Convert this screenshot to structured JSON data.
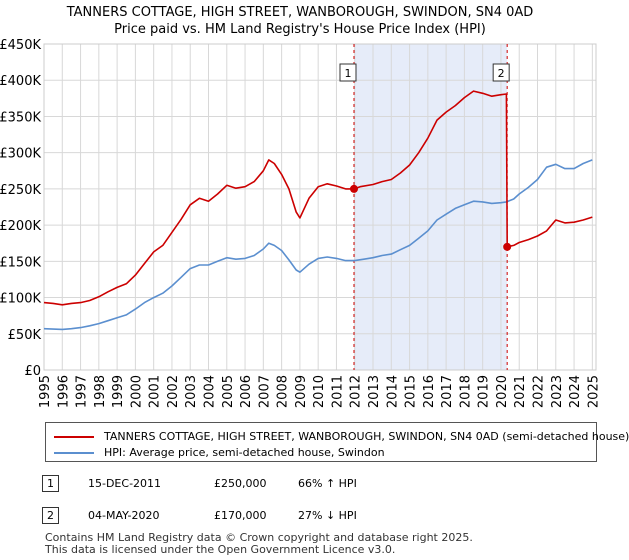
{
  "chart_data": {
    "type": "line",
    "title": "TANNERS COTTAGE, HIGH STREET, WANBOROUGH, SWINDON, SN4 0AD",
    "subtitle": "Price paid vs. HM Land Registry's House Price Index (HPI)",
    "xlim": [
      1995,
      2025.2
    ],
    "ylim": [
      0,
      450000
    ],
    "x_ticks": [
      1995,
      1996,
      1997,
      1998,
      1999,
      2000,
      2001,
      2002,
      2003,
      2004,
      2005,
      2006,
      2007,
      2008,
      2009,
      2010,
      2011,
      2012,
      2013,
      2014,
      2015,
      2016,
      2017,
      2018,
      2019,
      2020,
      2021,
      2022,
      2023,
      2024,
      2025
    ],
    "y_ticks": [
      0,
      50000,
      100000,
      150000,
      200000,
      250000,
      300000,
      350000,
      400000,
      450000
    ],
    "y_tick_labels": [
      "£0",
      "£50K",
      "£100K",
      "£150K",
      "£200K",
      "£250K",
      "£300K",
      "£350K",
      "£400K",
      "£450K"
    ],
    "grid": true,
    "shaded_period": [
      2011.96,
      2020.34
    ],
    "series": [
      {
        "name": "TANNERS COTTAGE, HIGH STREET, WANBOROUGH, SWINDON, SN4 0AD (semi-detached house)",
        "color": "#cc0000",
        "points": [
          [
            1995,
            93000
          ],
          [
            1995.5,
            92000
          ],
          [
            1996,
            90000
          ],
          [
            1996.5,
            92000
          ],
          [
            1997,
            93000
          ],
          [
            1997.5,
            96000
          ],
          [
            1998,
            101000
          ],
          [
            1998.5,
            108000
          ],
          [
            1999,
            114000
          ],
          [
            1999.5,
            119000
          ],
          [
            2000,
            131000
          ],
          [
            2000.5,
            147000
          ],
          [
            2001,
            163000
          ],
          [
            2001.5,
            172000
          ],
          [
            2002,
            190000
          ],
          [
            2002.5,
            208000
          ],
          [
            2003,
            228000
          ],
          [
            2003.5,
            237000
          ],
          [
            2004,
            233000
          ],
          [
            2004.5,
            243000
          ],
          [
            2005,
            255000
          ],
          [
            2005.5,
            251000
          ],
          [
            2006,
            253000
          ],
          [
            2006.5,
            260000
          ],
          [
            2007,
            275000
          ],
          [
            2007.3,
            290000
          ],
          [
            2007.6,
            285000
          ],
          [
            2008,
            270000
          ],
          [
            2008.4,
            250000
          ],
          [
            2008.8,
            218000
          ],
          [
            2009,
            210000
          ],
          [
            2009.5,
            237000
          ],
          [
            2010,
            253000
          ],
          [
            2010.5,
            257000
          ],
          [
            2011,
            254000
          ],
          [
            2011.5,
            250000
          ],
          [
            2011.96,
            250000
          ],
          [
            2012.3,
            253000
          ],
          [
            2013,
            256000
          ],
          [
            2013.5,
            260000
          ],
          [
            2014,
            263000
          ],
          [
            2014.5,
            272000
          ],
          [
            2015,
            283000
          ],
          [
            2015.5,
            300000
          ],
          [
            2016,
            320000
          ],
          [
            2016.5,
            345000
          ],
          [
            2017,
            356000
          ],
          [
            2017.5,
            365000
          ],
          [
            2018,
            376000
          ],
          [
            2018.5,
            385000
          ],
          [
            2019,
            382000
          ],
          [
            2019.5,
            378000
          ],
          [
            2020,
            380000
          ],
          [
            2020.3,
            381000
          ],
          [
            2020.34,
            170000
          ],
          [
            2020.7,
            172000
          ],
          [
            2021,
            176000
          ],
          [
            2021.5,
            180000
          ],
          [
            2022,
            185000
          ],
          [
            2022.5,
            192000
          ],
          [
            2023,
            207000
          ],
          [
            2023.5,
            203000
          ],
          [
            2024,
            204000
          ],
          [
            2024.5,
            207000
          ],
          [
            2025,
            211000
          ]
        ]
      },
      {
        "name": "HPI: Average price, semi-detached house, Swindon",
        "color": "#5b8fcf",
        "points": [
          [
            1995,
            57000
          ],
          [
            1995.5,
            56500
          ],
          [
            1996,
            56000
          ],
          [
            1996.5,
            57000
          ],
          [
            1997,
            58500
          ],
          [
            1997.5,
            61000
          ],
          [
            1998,
            64000
          ],
          [
            1998.5,
            68000
          ],
          [
            1999,
            72000
          ],
          [
            1999.5,
            76000
          ],
          [
            2000,
            84000
          ],
          [
            2000.5,
            93000
          ],
          [
            2001,
            100000
          ],
          [
            2001.5,
            106000
          ],
          [
            2002,
            116000
          ],
          [
            2002.5,
            128000
          ],
          [
            2003,
            140000
          ],
          [
            2003.5,
            145000
          ],
          [
            2004,
            145000
          ],
          [
            2004.5,
            150000
          ],
          [
            2005,
            155000
          ],
          [
            2005.5,
            153000
          ],
          [
            2006,
            154000
          ],
          [
            2006.5,
            158000
          ],
          [
            2007,
            167000
          ],
          [
            2007.3,
            175000
          ],
          [
            2007.6,
            172000
          ],
          [
            2008,
            165000
          ],
          [
            2008.4,
            152000
          ],
          [
            2008.8,
            138000
          ],
          [
            2009,
            135000
          ],
          [
            2009.5,
            146000
          ],
          [
            2010,
            154000
          ],
          [
            2010.5,
            156000
          ],
          [
            2011,
            154000
          ],
          [
            2011.5,
            151000
          ],
          [
            2012,
            151000
          ],
          [
            2012.5,
            153000
          ],
          [
            2013,
            155000
          ],
          [
            2013.5,
            158000
          ],
          [
            2014,
            160000
          ],
          [
            2014.5,
            166000
          ],
          [
            2015,
            172000
          ],
          [
            2015.5,
            182000
          ],
          [
            2016,
            192000
          ],
          [
            2016.5,
            207000
          ],
          [
            2017,
            215000
          ],
          [
            2017.5,
            223000
          ],
          [
            2018,
            228000
          ],
          [
            2018.5,
            233000
          ],
          [
            2019,
            232000
          ],
          [
            2019.5,
            230000
          ],
          [
            2020,
            231000
          ],
          [
            2020.3,
            232000
          ],
          [
            2020.7,
            236000
          ],
          [
            2021,
            243000
          ],
          [
            2021.5,
            252000
          ],
          [
            2022,
            263000
          ],
          [
            2022.5,
            280000
          ],
          [
            2023,
            284000
          ],
          [
            2023.5,
            278000
          ],
          [
            2024,
            278000
          ],
          [
            2024.5,
            285000
          ],
          [
            2025,
            290000
          ]
        ]
      }
    ],
    "markers": [
      {
        "label": "1",
        "x": 2011.96,
        "y": 250000
      },
      {
        "label": "2",
        "x": 2020.34,
        "y": 170000
      }
    ]
  },
  "legend": {
    "entries": [
      {
        "label": "TANNERS COTTAGE, HIGH STREET, WANBOROUGH, SWINDON, SN4 0AD (semi-detached house)",
        "color": "#cc0000"
      },
      {
        "label": "HPI: Average price, semi-detached house, Swindon",
        "color": "#5b8fcf"
      }
    ]
  },
  "transactions": [
    {
      "num": "1",
      "date": "15-DEC-2011",
      "price": "£250,000",
      "hpi": "66% ↑ HPI"
    },
    {
      "num": "2",
      "date": "04-MAY-2020",
      "price": "£170,000",
      "hpi": "27% ↓ HPI"
    }
  ],
  "footer": {
    "line1": "Contains HM Land Registry data © Crown copyright and database right 2025.",
    "line2": "This data is licensed under the Open Government Licence v3.0."
  }
}
